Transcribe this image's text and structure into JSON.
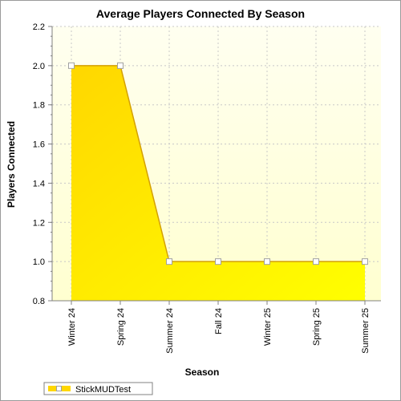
{
  "chart_data": {
    "type": "area",
    "title": "Average Players Connected By Season",
    "xlabel": "Season",
    "ylabel": "Players Connected",
    "categories": [
      "Winter 24",
      "Spring 24",
      "Summer 24",
      "Fall 24",
      "Winter 25",
      "Spring 25",
      "Summer 25"
    ],
    "series": [
      {
        "name": "StickMUDTest",
        "values": [
          2.0,
          2.0,
          1.0,
          1.0,
          1.0,
          1.0,
          1.0
        ]
      }
    ],
    "ylim": [
      0.8,
      2.2
    ],
    "yticks": [
      "0.8",
      "1.0",
      "1.2",
      "1.4",
      "1.6",
      "1.8",
      "2.0",
      "2.2"
    ],
    "grid": true,
    "legend_position": "bottom-left",
    "colors": {
      "plot_background_top": "#fffff0",
      "plot_background_bottom": "#ffffd0",
      "fill_top": "#ffd700",
      "fill_bottom": "#ffff00",
      "line": "#d4a000",
      "marker_fill": "#ffffff",
      "marker_stroke": "#a0a0a0",
      "grid": "#c8c8c8"
    }
  }
}
